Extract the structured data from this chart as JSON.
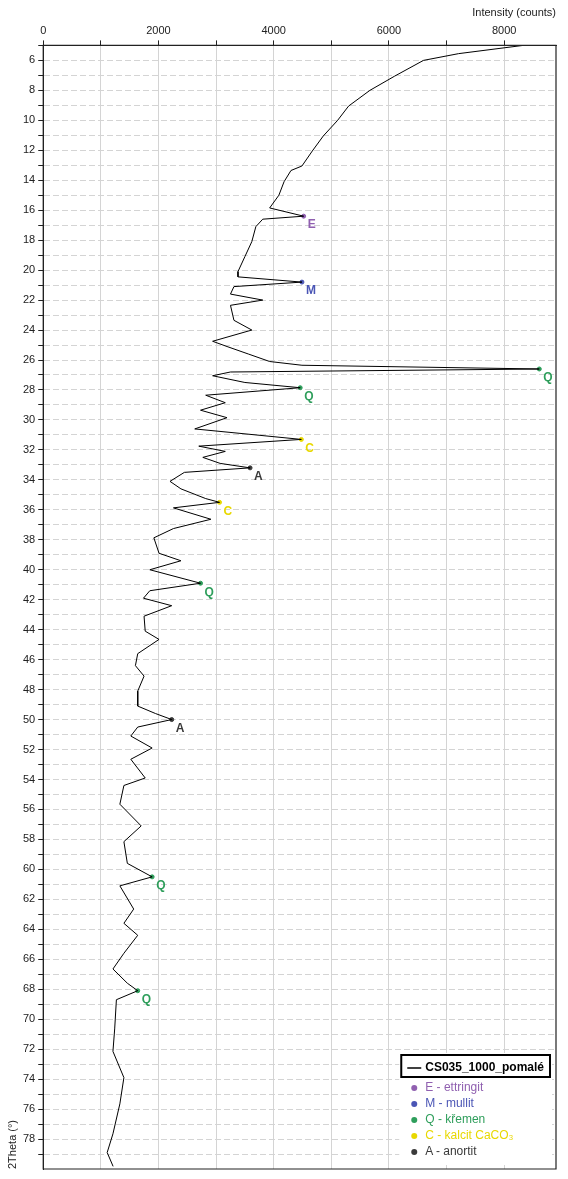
{
  "chart_data": {
    "type": "line",
    "orientation": "horizontal",
    "xlabel": "Intensity (counts)",
    "ylabel": "2Theta (°)",
    "xlim": [
      0,
      8900
    ],
    "ylim": [
      80,
      5
    ],
    "xticks": [
      0,
      {
        "value": 1000,
        "label": null
      },
      2000,
      {
        "value": 3000,
        "label": null
      },
      4000,
      {
        "value": 5000,
        "label": null
      },
      6000,
      {
        "value": 7000,
        "label": null
      },
      8000
    ],
    "yticks": [
      {
        "value": 5,
        "label": null
      },
      6,
      {
        "value": 7,
        "label": null
      },
      8,
      {
        "value": 9,
        "label": null
      },
      10,
      {
        "value": 11,
        "label": null
      },
      12,
      {
        "value": 13,
        "label": null
      },
      14,
      {
        "value": 15,
        "label": null
      },
      16,
      {
        "value": 17,
        "label": null
      },
      18,
      {
        "value": 19,
        "label": null
      },
      20,
      {
        "value": 21,
        "label": null
      },
      22,
      {
        "value": 23,
        "label": null
      },
      24,
      {
        "value": 25,
        "label": null
      },
      26,
      {
        "value": 27,
        "label": null
      },
      28,
      {
        "value": 29,
        "label": null
      },
      30,
      {
        "value": 31,
        "label": null
      },
      32,
      {
        "value": 33,
        "label": null
      },
      34,
      {
        "value": 35,
        "label": null
      },
      36,
      {
        "value": 37,
        "label": null
      },
      38,
      {
        "value": 39,
        "label": null
      },
      40,
      {
        "value": 41,
        "label": null
      },
      42,
      {
        "value": 43,
        "label": null
      },
      44,
      {
        "value": 45,
        "label": null
      },
      46,
      {
        "value": 47,
        "label": null
      },
      48,
      {
        "value": 49,
        "label": null
      },
      50,
      {
        "value": 51,
        "label": null
      },
      52,
      {
        "value": 53,
        "label": null
      },
      54,
      {
        "value": 55,
        "label": null
      },
      56,
      {
        "value": 57,
        "label": null
      },
      58,
      {
        "value": 59,
        "label": null
      },
      60,
      {
        "value": 61,
        "label": null
      },
      62,
      {
        "value": 63,
        "label": null
      },
      64,
      {
        "value": 65,
        "label": null
      },
      66,
      {
        "value": 67,
        "label": null
      },
      68,
      {
        "value": 69,
        "label": null
      },
      70,
      {
        "value": 71,
        "label": null
      },
      72,
      {
        "value": 73,
        "label": null
      },
      74,
      {
        "value": 75,
        "label": null
      },
      76,
      {
        "value": 77,
        "label": null
      },
      78,
      {
        "value": 79,
        "label": null
      }
    ],
    "grid": true,
    "legend": "bottom right",
    "marker": "none",
    "line_style": "solid",
    "series": [
      {
        "name": "CS035_1000_pomalé",
        "type": "line",
        "color": "#000000",
        "x": [
          5.0,
          5.55,
          6.0,
          7.05,
          8.0,
          9.05,
          10.0,
          11.05,
          12.05,
          13.05,
          13.35,
          14.1,
          15.0,
          15.85,
          16.4,
          16.6,
          17.1,
          18.1,
          19.1,
          20.1,
          20.45,
          20.8,
          21.1,
          21.6,
          22.0,
          22.35,
          23.35,
          24.0,
          24.75,
          25.1,
          25.6,
          26.1,
          26.35,
          26.6,
          26.8,
          27.05,
          27.5,
          27.85,
          28.35,
          28.85,
          29.35,
          29.85,
          30.6,
          31.3,
          31.75,
          32.1,
          32.5,
          32.9,
          33.2,
          33.5,
          34.1,
          34.6,
          35.25,
          35.5,
          35.87,
          36.63,
          37.25,
          37.87,
          38.9,
          39.4,
          40.0,
          40.9,
          41.4,
          41.9,
          42.4,
          43.1,
          44.1,
          44.65,
          45.6,
          46.4,
          47.1,
          48.1,
          49.1,
          49.6,
          50.0,
          50.5,
          51.1,
          51.9,
          52.65,
          53.9,
          54.4,
          55.65,
          57.1,
          58.15,
          59.6,
          60.5,
          61.1,
          62.65,
          63.6,
          64.4,
          65.6,
          66.65,
          67.6,
          68.1,
          68.7,
          70.65,
          72.15,
          73.9,
          75.65,
          77.65,
          78.9,
          79.8
        ],
        "values": [
          8330,
          7210,
          6600,
          6100,
          5670,
          5300,
          5110,
          4860,
          4670,
          4490,
          4300,
          4180,
          4090,
          3930,
          4520,
          3810,
          3690,
          3620,
          3500,
          3380,
          3380,
          4490,
          3310,
          3250,
          3810,
          3250,
          3310,
          3620,
          2940,
          3190,
          3560,
          3930,
          4490,
          8610,
          3250,
          2940,
          3500,
          4460,
          2820,
          3160,
          2730,
          3190,
          2630,
          4480,
          2700,
          3160,
          2770,
          3070,
          3590,
          2450,
          2200,
          2390,
          2820,
          3060,
          2260,
          2910,
          2260,
          1920,
          2010,
          2390,
          1850,
          2730,
          1850,
          1740,
          2230,
          1750,
          1770,
          2010,
          1640,
          1600,
          1750,
          1640,
          1640,
          1950,
          2230,
          1640,
          1520,
          1890,
          1520,
          1770,
          1400,
          1330,
          1700,
          1400,
          1460,
          1890,
          1330,
          1570,
          1400,
          1640,
          1400,
          1210,
          1460,
          1640,
          1270,
          1240,
          1210,
          1400,
          1330,
          1210,
          1110,
          1210
        ]
      },
      {
        "name": "E - ettringit",
        "type": "scatter",
        "marker": "circle",
        "color": "#9060b0",
        "x": [
          16.4
        ],
        "values": [
          4520
        ],
        "value_labels": [
          "E"
        ]
      },
      {
        "name": "M - mullit",
        "type": "scatter",
        "marker": "circle",
        "color": "#4a55b5",
        "x": [
          20.8
        ],
        "values": [
          4490
        ],
        "value_labels": [
          "M"
        ]
      },
      {
        "name": "Q - křemen",
        "type": "scatter",
        "marker": "circle",
        "color": "#2e9e5b",
        "x": [
          26.6,
          27.85,
          40.9,
          60.5,
          68.1
        ],
        "values": [
          8610,
          4460,
          2730,
          1890,
          1640
        ],
        "value_labels": [
          "Q",
          "Q",
          "Q",
          "Q",
          "Q"
        ]
      },
      {
        "name": "C - kalcit CaCO₃",
        "type": "scatter",
        "marker": "circle",
        "color": "#e8d800",
        "x": [
          31.3,
          35.5
        ],
        "values": [
          4480,
          3060
        ],
        "value_labels": [
          "C",
          "C"
        ]
      },
      {
        "name": "A - anortit",
        "type": "scatter",
        "marker": "circle",
        "color": "#3a3a3a",
        "x": [
          33.2,
          50.0
        ],
        "values": [
          3590,
          2230
        ],
        "value_labels": [
          "A",
          "A"
        ]
      }
    ]
  }
}
